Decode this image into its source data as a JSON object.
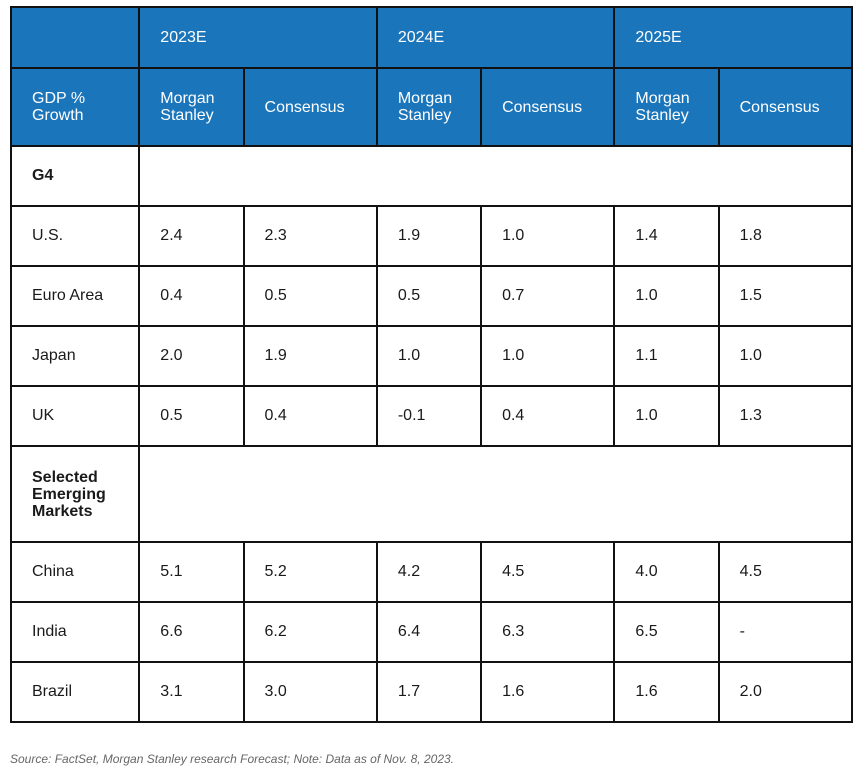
{
  "chart_data": {
    "type": "table",
    "header": {
      "corner": "",
      "years": [
        "2023E",
        "2024E",
        "2025E"
      ],
      "row_label": "GDP % Growth",
      "sub_columns": [
        "Morgan Stanley",
        "Consensus",
        "Morgan Stanley",
        "Consensus",
        "Morgan Stanley",
        "Consensus"
      ]
    },
    "sections": [
      {
        "name": "G4",
        "rows": [
          {
            "label": "U.S.",
            "values": [
              "2.4",
              "2.3",
              "1.9",
              "1.0",
              "1.4",
              "1.8"
            ]
          },
          {
            "label": "Euro Area",
            "values": [
              "0.4",
              "0.5",
              "0.5",
              "0.7",
              "1.0",
              "1.5"
            ]
          },
          {
            "label": "Japan",
            "values": [
              "2.0",
              "1.9",
              "1.0",
              "1.0",
              "1.1",
              "1.0"
            ]
          },
          {
            "label": "UK",
            "values": [
              "0.5",
              "0.4",
              "-0.1",
              "0.4",
              "1.0",
              "1.3"
            ]
          }
        ]
      },
      {
        "name": "Selected Emerging Markets",
        "rows": [
          {
            "label": "China",
            "values": [
              "5.1",
              "5.2",
              "4.2",
              "4.5",
              "4.0",
              "4.5"
            ]
          },
          {
            "label": "India",
            "values": [
              "6.6",
              "6.2",
              "6.4",
              "6.3",
              "6.5",
              "-"
            ]
          },
          {
            "label": "Brazil",
            "values": [
              "3.1",
              "3.0",
              "1.7",
              "1.6",
              "1.6",
              "2.0"
            ]
          }
        ]
      }
    ],
    "source": "Source: FactSet, Morgan Stanley research Forecast; Note: Data as of Nov. 8, 2023."
  },
  "colors": {
    "header_bg": "#1b75bb",
    "header_text": "#ffffff",
    "border": "#111111"
  }
}
